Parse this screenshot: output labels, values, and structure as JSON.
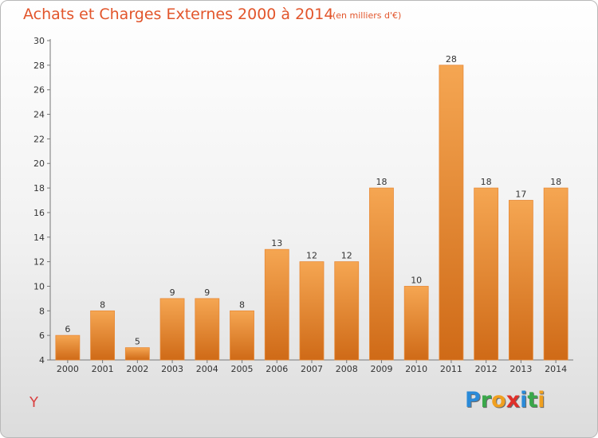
{
  "header": {
    "title": "Achats et Charges Externes 2000 à 2014",
    "subtitle": "(en milliers d'€)"
  },
  "footer": {
    "commune": "Y",
    "brand": "Proxiti",
    "brand_letters": [
      "P",
      "r",
      "o",
      "x",
      "i",
      "t",
      "i"
    ],
    "brand_colors": [
      "#2a8ad8",
      "#3aa84a",
      "#f0a020",
      "#e0302a",
      "#2a8ad8",
      "#3aa84a",
      "#f0a020"
    ]
  },
  "chart_data": {
    "type": "bar",
    "title": "Achats et Charges Externes 2000 à 2014",
    "subtitle": "(en milliers d'€)",
    "categories": [
      "2000",
      "2001",
      "2002",
      "2003",
      "2004",
      "2005",
      "2006",
      "2007",
      "2008",
      "2009",
      "2010",
      "2011",
      "2012",
      "2013",
      "2014"
    ],
    "values": [
      6,
      8,
      5,
      9,
      9,
      8,
      13,
      12,
      12,
      18,
      10,
      28,
      18,
      17,
      18
    ],
    "ylim": [
      4,
      30
    ],
    "yticks": [
      4,
      6,
      8,
      10,
      12,
      14,
      16,
      18,
      20,
      22,
      24,
      26,
      28,
      30
    ],
    "grid": false,
    "colors": {
      "bar_top": "#f5a652",
      "bar_bottom": "#cf6a17",
      "bar_edge": "#e88a38",
      "axis": "#777777"
    }
  }
}
